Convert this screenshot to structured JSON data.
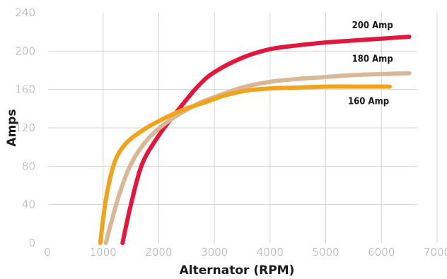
{
  "chart_data": {
    "type": "line",
    "xlabel": "Alternator (RPM)",
    "ylabel": "Amps",
    "xlim": [
      0,
      7000
    ],
    "ylim": [
      0,
      240
    ],
    "x_ticks": [
      "0",
      "1000",
      "2000",
      "3000",
      "4000",
      "5000",
      "6000",
      "7000"
    ],
    "y_ticks": [
      "0",
      "40",
      "80",
      "120",
      "160",
      "200",
      "240"
    ],
    "grid": "vertical and horizontal",
    "legend": "inline labels at right end of lines",
    "series": [
      {
        "name": "200 Amp",
        "color": "#e3173e",
        "x": [
          1350,
          1500,
          1700,
          2000,
          2300,
          2700,
          3000,
          3500,
          4000,
          4500,
          5000,
          5500,
          6000,
          6500
        ],
        "y": [
          0,
          40,
          82,
          112,
          135,
          163,
          178,
          193,
          202,
          206,
          209,
          211,
          213,
          215
        ]
      },
      {
        "name": "180 Amp",
        "color": "#d8b896",
        "x": [
          1050,
          1150,
          1300,
          1500,
          1800,
          2200,
          2700,
          3000,
          3500,
          4000,
          4500,
          5000,
          5500,
          6000,
          6500
        ],
        "y": [
          0,
          22,
          52,
          82,
          108,
          128,
          145,
          152,
          162,
          168,
          171,
          173,
          175,
          176,
          177
        ]
      },
      {
        "name": "160 Amp",
        "color": "#f1a31c",
        "x": [
          950,
          1050,
          1200,
          1400,
          1700,
          2000,
          2400,
          2800,
          3200,
          3600,
          4000,
          4500,
          5000,
          5500,
          6000,
          6150
        ],
        "y": [
          0,
          45,
          83,
          103,
          117,
          127,
          138,
          146,
          154,
          159,
          161,
          162,
          163,
          163,
          163,
          163
        ]
      }
    ]
  }
}
